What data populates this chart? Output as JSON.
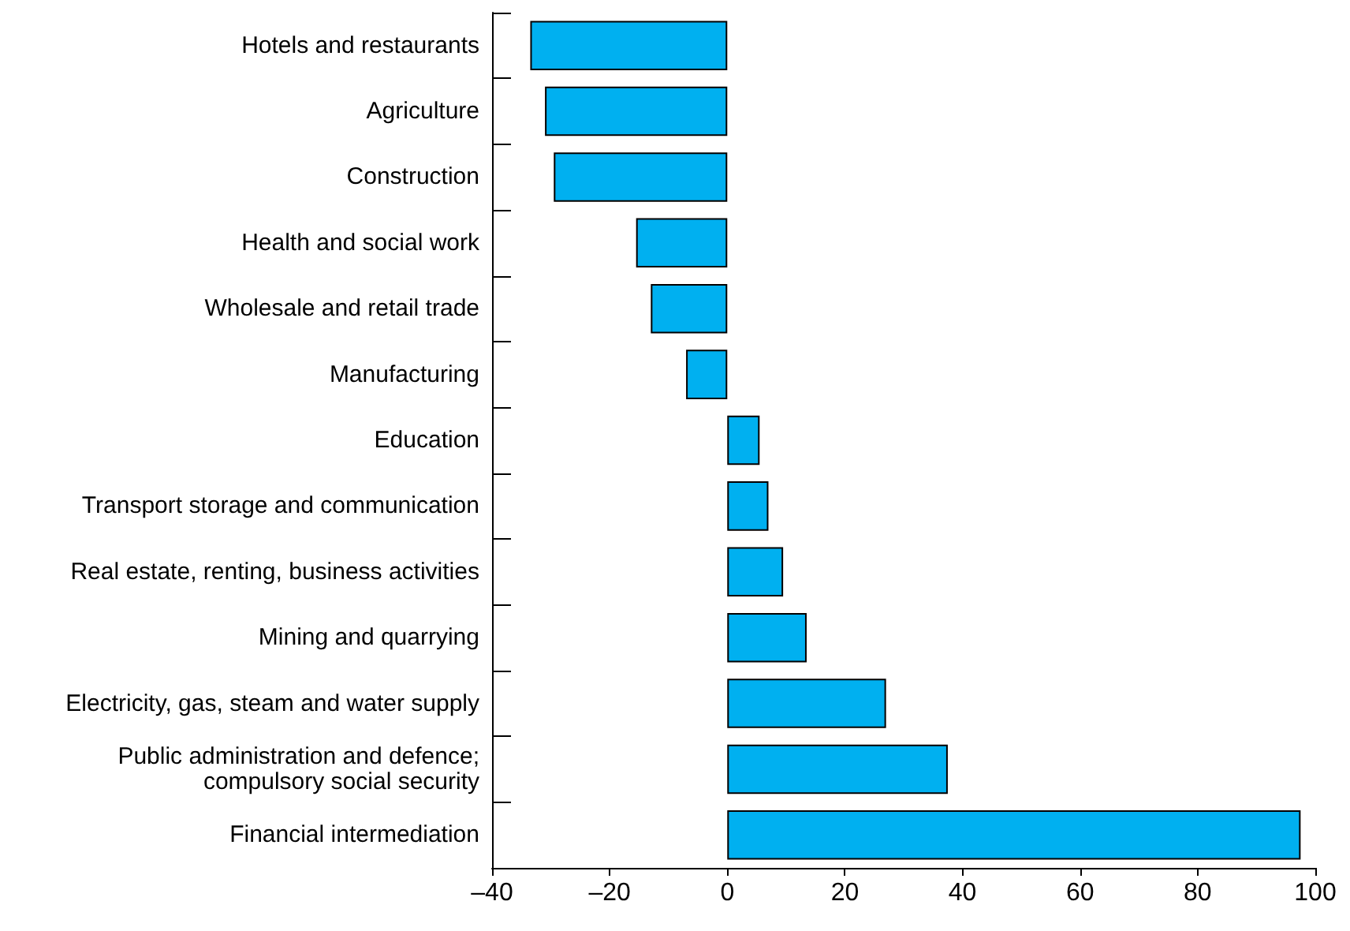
{
  "chart_data": {
    "type": "bar",
    "orientation": "horizontal",
    "categories": [
      "Hotels and restaurants",
      "Agriculture",
      "Construction",
      "Health and social work",
      "Wholesale and retail trade",
      "Manufacturing",
      "Education",
      "Transport storage and communication",
      "Real estate, renting, business activities",
      "Mining and quarrying",
      "Electricity, gas, steam and water supply",
      "Public administration and defence;\ncompulsory social security",
      "Financial intermediation"
    ],
    "values": [
      -33.5,
      -31,
      -29.5,
      -15.5,
      -13,
      -7,
      5.5,
      7,
      9.5,
      13.5,
      27,
      37.5,
      97.5
    ],
    "color": "#00b0f0",
    "xlim": [
      -40,
      100
    ],
    "xticks": [
      {
        "value": -40,
        "label": "–40"
      },
      {
        "value": -20,
        "label": "–20"
      },
      0,
      20,
      40,
      60,
      80,
      100
    ],
    "grid": false
  }
}
